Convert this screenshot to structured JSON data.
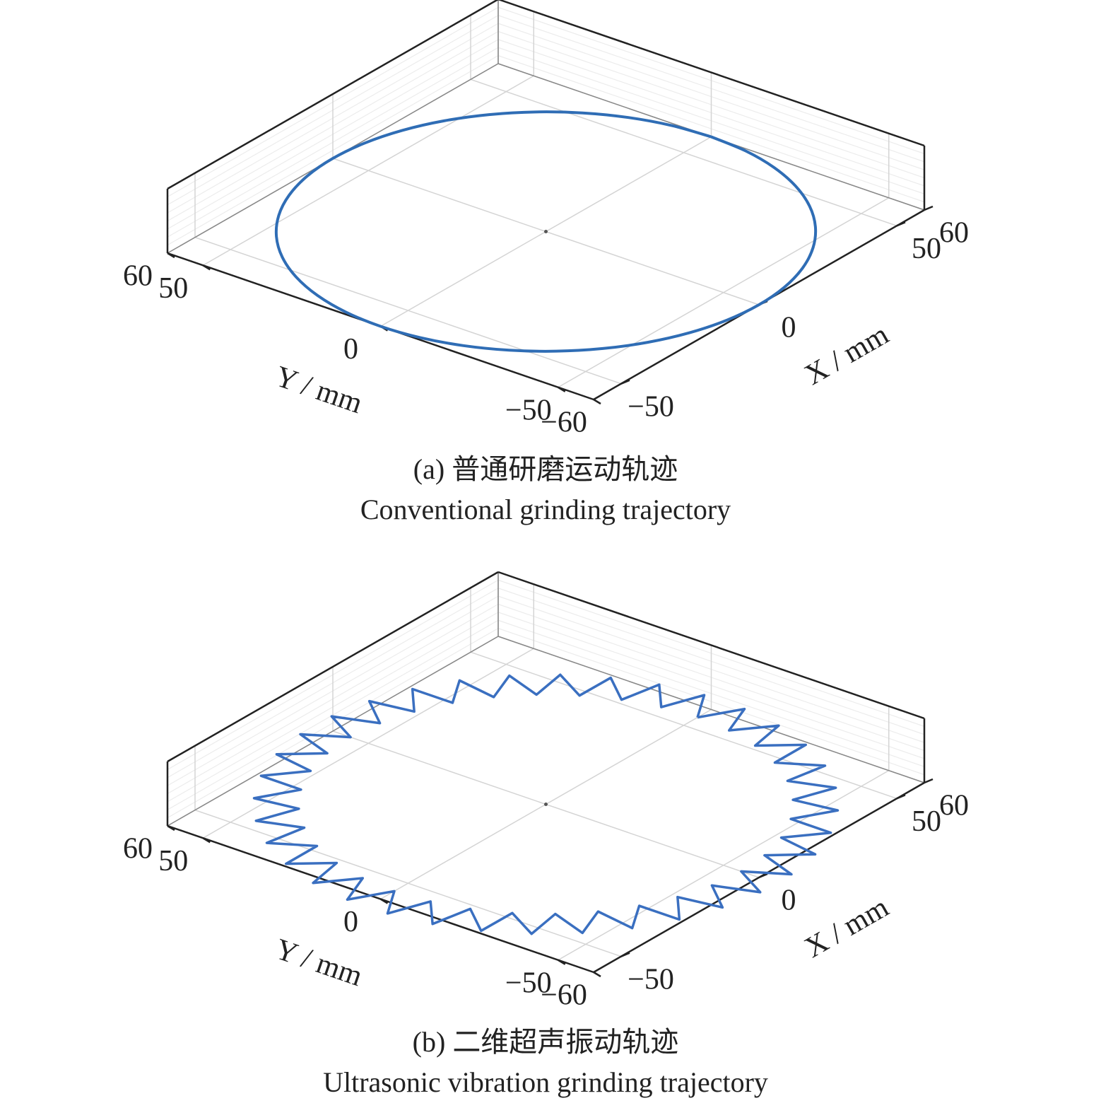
{
  "chart_data": [
    {
      "type": "line3d",
      "title": "(a) 普通研磨运动轨迹",
      "subtitle": "Conventional grinding trajectory",
      "xlabel": "X / mm",
      "ylabel": "Y / mm",
      "xlim": [
        -60,
        60
      ],
      "ylim": [
        -60,
        60
      ],
      "xticks": [
        {
          "value": -50,
          "label": "−50"
        },
        0,
        50,
        60
      ],
      "yticks": [
        60,
        50,
        0,
        {
          "value": -50,
          "label": "−50"
        },
        {
          "value": -60,
          "label": "−60"
        }
      ],
      "grid": true,
      "smooth": true,
      "series": [
        {
          "color": "#2f6db5",
          "x": [
            60,
            59.09,
            56.38,
            51.96,
            45.96,
            38.57,
            30,
            20.52,
            10.42,
            0,
            -10.42,
            -20.52,
            -30,
            -38.57,
            -45.96,
            -51.96,
            -56.38,
            -59.09,
            -60,
            -59.09,
            -56.38,
            -51.96,
            -45.96,
            -38.57,
            -30,
            -20.52,
            -10.42,
            0,
            10.42,
            20.52,
            30,
            38.57,
            45.96,
            51.96,
            56.38,
            59.09,
            60
          ],
          "y": [
            0,
            10.42,
            20.52,
            30,
            38.57,
            45.96,
            51.96,
            56.38,
            59.09,
            60,
            59.09,
            56.38,
            51.96,
            45.96,
            38.57,
            30,
            20.52,
            10.42,
            0,
            -10.42,
            -20.52,
            -30,
            -38.57,
            -45.96,
            -51.96,
            -56.38,
            -59.09,
            -60,
            -59.09,
            -56.38,
            -51.96,
            -45.96,
            -38.57,
            -30,
            -20.52,
            -10.42,
            0
          ]
        }
      ]
    },
    {
      "type": "line3d",
      "title": "(b) 二维超声振动轨迹",
      "subtitle": "Ultrasonic vibration grinding trajectory",
      "xlabel": "X / mm",
      "ylabel": "Y / mm",
      "xlim": [
        -60,
        60
      ],
      "ylim": [
        -60,
        60
      ],
      "xticks": [
        {
          "value": -50,
          "label": "−50"
        },
        0,
        50,
        60
      ],
      "yticks": [
        60,
        50,
        0,
        {
          "value": -50,
          "label": "−50"
        },
        {
          "value": -60,
          "label": "−60"
        }
      ],
      "grid": true,
      "smooth": false,
      "series": [
        {
          "color": "#3a6fc0",
          "x": [
            55,
            64.75,
            54.16,
            62.79,
            51.68,
            58.91,
            47.63,
            53.25,
            42.13,
            45.96,
            35.35,
            37.28,
            27.5,
            27.47,
            18.81,
            16.82,
            9.55,
            5.67,
            0,
            -5.67,
            -9.55,
            -16.82,
            -18.81,
            -27.47,
            -27.5,
            -37.28,
            -35.35,
            -45.96,
            -42.13,
            -53.25,
            -47.63,
            -58.91,
            -51.68,
            -62.79,
            -54.16,
            -64.75,
            -55,
            -64.75,
            -54.16,
            -62.79,
            -51.68,
            -58.91,
            -47.63,
            -53.25,
            -42.13,
            -45.96,
            -35.35,
            -37.28,
            -27.5,
            -27.47,
            -18.81,
            -16.82,
            -9.55,
            -5.67,
            0,
            5.67,
            9.55,
            16.82,
            18.81,
            27.47,
            27.5,
            37.28,
            35.35,
            45.96,
            42.13,
            53.25,
            47.63,
            58.91,
            51.68,
            62.79,
            54.16,
            64.75,
            55
          ],
          "y": [
            0,
            5.67,
            9.55,
            16.82,
            18.81,
            27.47,
            27.5,
            37.28,
            35.35,
            45.96,
            42.13,
            53.25,
            47.63,
            58.91,
            51.68,
            62.79,
            54.16,
            64.75,
            55,
            64.75,
            54.16,
            62.79,
            51.68,
            58.91,
            47.63,
            53.25,
            42.13,
            45.96,
            35.35,
            37.28,
            27.5,
            27.47,
            18.81,
            16.82,
            9.55,
            5.67,
            0,
            -5.67,
            -9.55,
            -16.82,
            -18.81,
            -27.47,
            -27.5,
            -37.28,
            -35.35,
            -45.96,
            -42.13,
            -53.25,
            -47.63,
            -58.91,
            -51.68,
            -62.79,
            -54.16,
            -64.75,
            -55,
            -64.75,
            -54.16,
            -62.79,
            -51.68,
            -58.91,
            -47.63,
            -53.25,
            -42.13,
            -45.96,
            -35.35,
            -37.28,
            -27.5,
            -27.47,
            -18.81,
            -16.82,
            -9.55,
            -5.67,
            0
          ]
        }
      ]
    }
  ]
}
